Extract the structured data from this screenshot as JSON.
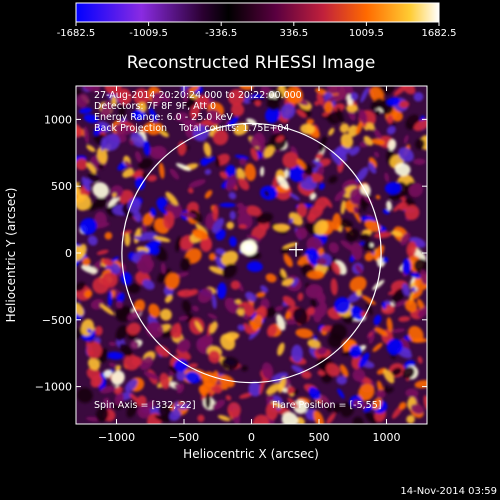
{
  "colorbar": {
    "ticks": [
      "-1682.5",
      "-1009.5",
      "-336.5",
      "336.5",
      "1009.5",
      "1682.5"
    ],
    "range": [
      -1682.5,
      1682.5
    ],
    "colormap": [
      "#0000ff",
      "#8a2be2",
      "#2a0030",
      "#000000",
      "#5a0040",
      "#c0203c",
      "#ff6a00",
      "#ffcc33",
      "#ffffff"
    ]
  },
  "chart_data": {
    "type": "heatmap",
    "title": "Reconstructed RHESSI Image",
    "xlabel": "Heliocentric X (arcsec)",
    "ylabel": "Heliocentric Y (arcsec)",
    "xlim": [
      -1300,
      1300
    ],
    "ylim": [
      -1280,
      1250
    ],
    "xticks": [
      -1000,
      -500,
      0,
      500,
      1000
    ],
    "yticks": [
      -1000,
      -500,
      0,
      500,
      1000
    ],
    "xtick_labels": [
      "−1000",
      "−500",
      "0",
      "500",
      "1000"
    ],
    "ytick_labels": [
      "−1000",
      "−500",
      "0",
      "500",
      "1000"
    ],
    "solar_limb_radius_arcsec": 960,
    "flare_marker": [
      330,
      25
    ],
    "info_lines": [
      "27-Aug-2014 20:20:24.000 to 20:22:00.000",
      "Detectors: 7F 8F 9F, Att 0",
      "Energy Range: 6.0 - 25.0 keV",
      "Back Projection    Total counts: 1.75E+04"
    ],
    "spin_axis": "Spin Axis = [332,-22]",
    "flare_position": "Flare Position = [-5,55]",
    "grid": false
  },
  "footer": {
    "timestamp": "14-Nov-2014 03:59"
  }
}
